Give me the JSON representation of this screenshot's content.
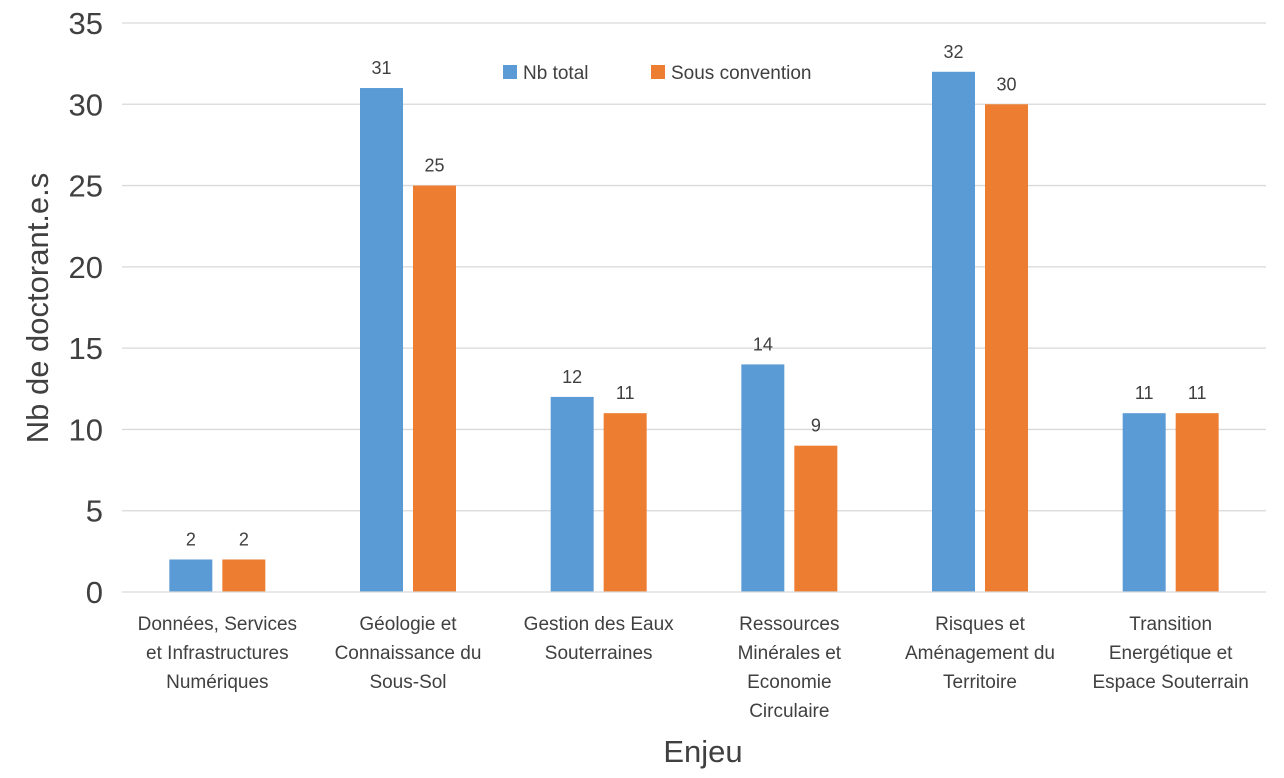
{
  "chart_data": {
    "type": "bar",
    "title": "",
    "xlabel": "Enjeu",
    "ylabel": "Nb de doctorant.e.s",
    "ylim": [
      0,
      35
    ],
    "yticks": [
      0,
      5,
      10,
      15,
      20,
      25,
      30,
      35
    ],
    "grid": true,
    "legend_position": "top",
    "categories": [
      [
        "Données, Services",
        "et Infrastructures",
        "Numériques"
      ],
      [
        "Géologie et",
        "Connaissance du",
        "Sous-Sol"
      ],
      [
        "Gestion des Eaux",
        "Souterraines"
      ],
      [
        "Ressources",
        "Minérales et",
        "Economie",
        "Circulaire"
      ],
      [
        "Risques et",
        "Aménagement du",
        "Territoire"
      ],
      [
        "Transition",
        "Energétique et",
        "Espace Souterrain"
      ]
    ],
    "series": [
      {
        "name": "Nb total",
        "color": "#5B9BD5",
        "values": [
          2,
          31,
          12,
          14,
          32,
          11
        ]
      },
      {
        "name": "Sous convention",
        "color": "#ED7D31",
        "values": [
          2,
          25,
          11,
          9,
          30,
          11
        ]
      }
    ]
  }
}
